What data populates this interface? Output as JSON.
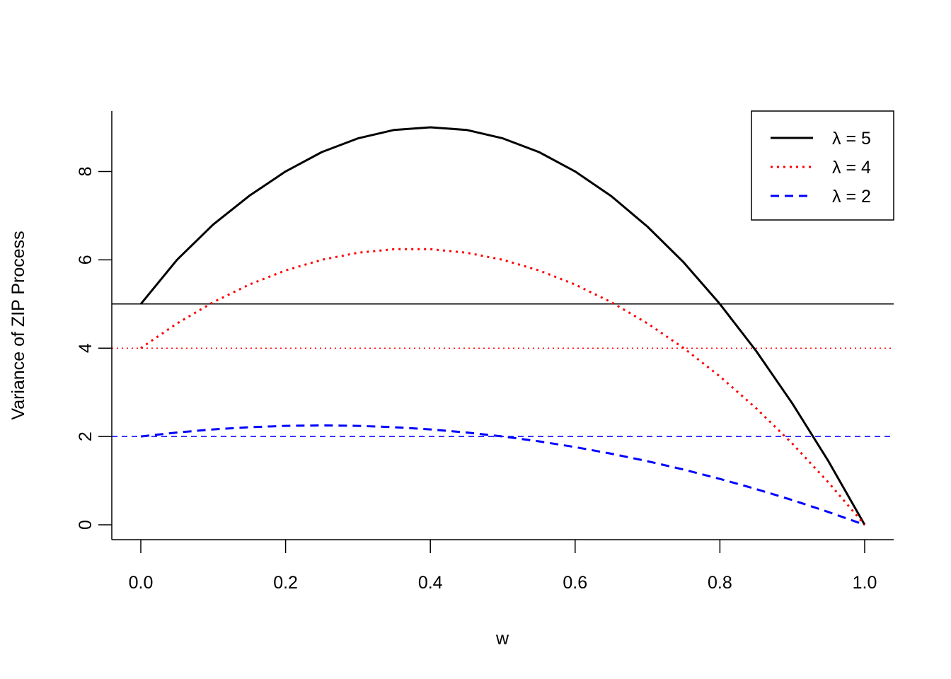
{
  "chart_data": {
    "type": "line",
    "title": "",
    "xlabel": "w",
    "ylabel": "Variance of ZIP Process",
    "xlim": [
      0,
      1
    ],
    "ylim": [
      0,
      9
    ],
    "x_ticks": [
      "0.0",
      "0.2",
      "0.4",
      "0.6",
      "0.8",
      "1.0"
    ],
    "y_ticks": [
      "0",
      "2",
      "4",
      "6",
      "8"
    ],
    "grid": false,
    "legend_position": "top-right",
    "series": [
      {
        "name": "λ = 5",
        "lambda": 5,
        "color": "#000000",
        "style": "solid",
        "x": [
          0,
          0.05,
          0.1,
          0.15,
          0.2,
          0.25,
          0.3,
          0.35,
          0.4,
          0.45,
          0.5,
          0.55,
          0.6,
          0.65,
          0.7,
          0.75,
          0.8,
          0.85,
          0.9,
          0.95,
          1.0
        ],
        "values": [
          5,
          6.0,
          6.8,
          7.45,
          8.0,
          8.44,
          8.75,
          8.94,
          9.0,
          8.94,
          8.75,
          8.44,
          8.0,
          7.44,
          6.75,
          5.94,
          5.0,
          3.94,
          2.75,
          1.44,
          0
        ]
      },
      {
        "name": "λ = 4",
        "lambda": 4,
        "color": "#ff0000",
        "style": "dotted",
        "x": [
          0,
          0.05,
          0.1,
          0.15,
          0.2,
          0.25,
          0.3,
          0.35,
          0.4,
          0.45,
          0.5,
          0.55,
          0.6,
          0.65,
          0.7,
          0.75,
          0.8,
          0.85,
          0.9,
          0.95,
          1.0
        ],
        "values": [
          4,
          4.56,
          5.04,
          5.44,
          5.76,
          6.0,
          6.16,
          6.24,
          6.24,
          6.16,
          6.0,
          5.76,
          5.44,
          5.04,
          4.56,
          4.0,
          3.36,
          2.64,
          1.84,
          0.96,
          0
        ]
      },
      {
        "name": "λ = 2",
        "lambda": 2,
        "color": "#0000ff",
        "style": "dashed",
        "x": [
          0,
          0.05,
          0.1,
          0.15,
          0.2,
          0.25,
          0.3,
          0.35,
          0.4,
          0.45,
          0.5,
          0.55,
          0.6,
          0.65,
          0.7,
          0.75,
          0.8,
          0.85,
          0.9,
          0.95,
          1.0
        ],
        "values": [
          2,
          2.09,
          2.16,
          2.21,
          2.24,
          2.25,
          2.24,
          2.21,
          2.16,
          2.09,
          2.0,
          1.89,
          1.76,
          1.61,
          1.44,
          1.25,
          1.04,
          0.81,
          0.56,
          0.29,
          0
        ]
      }
    ],
    "reference_lines": [
      {
        "y": 5,
        "color": "#000000",
        "style": "solid"
      },
      {
        "y": 4,
        "color": "#ff0000",
        "style": "dotted"
      },
      {
        "y": 2,
        "color": "#0000ff",
        "style": "dashed"
      }
    ]
  }
}
